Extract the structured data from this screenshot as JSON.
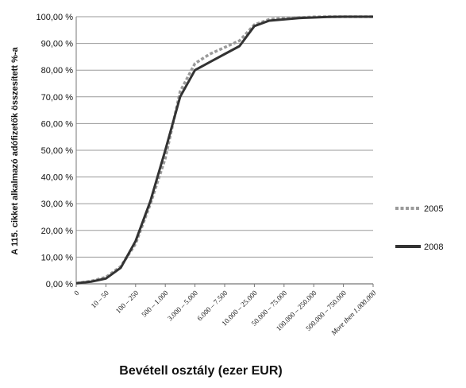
{
  "chart_data": {
    "type": "line",
    "categories": [
      "0",
      "10 – 50",
      "100 – 250",
      "500 – 1.000",
      "3.000 – 5.000",
      "6.000 – 7.500",
      "10.000 – 25.000",
      "50.000 – 75.000",
      "100.000 – 250.000",
      "500.000 – 750.000",
      "More then 1.000.000"
    ],
    "x": [
      0,
      0.5,
      1,
      1.5,
      2,
      2.5,
      3,
      3.5,
      4,
      4.5,
      5,
      5.5,
      6,
      6.5,
      7,
      7.5,
      8,
      8.5,
      9,
      9.5,
      10
    ],
    "series": [
      {
        "name": "2005",
        "style": "dashed",
        "color": "#9a9a9a",
        "values": [
          0.2,
          1.0,
          2.5,
          6.5,
          15.0,
          30.0,
          47.0,
          72.0,
          82.5,
          86.0,
          88.5,
          91.0,
          97.0,
          99.0,
          99.5,
          99.7,
          99.9,
          100.0,
          100.0,
          100.0,
          100.0
        ]
      },
      {
        "name": "2008",
        "style": "solid",
        "color": "#333333",
        "values": [
          0.2,
          0.8,
          2.0,
          6.0,
          16.0,
          31.0,
          50.0,
          70.0,
          80.0,
          83.0,
          86.0,
          89.0,
          96.5,
          98.5,
          99.0,
          99.5,
          99.7,
          99.9,
          100.0,
          100.0,
          100.0
        ]
      }
    ],
    "ylabel": "A 115. cikket alkalmazó adófizetők összesített %-a",
    "xlabel": "Bevétell osztály (ezer EUR)",
    "ylim": [
      0,
      100
    ],
    "yticks": [
      "0,00 %",
      "10,00 %",
      "20,00 %",
      "30,00 %",
      "40,00 %",
      "50,00 %",
      "60,00 %",
      "70,00 %",
      "80,00 %",
      "90,00 %",
      "100,00 %"
    ],
    "grid": true,
    "legend": "right"
  }
}
